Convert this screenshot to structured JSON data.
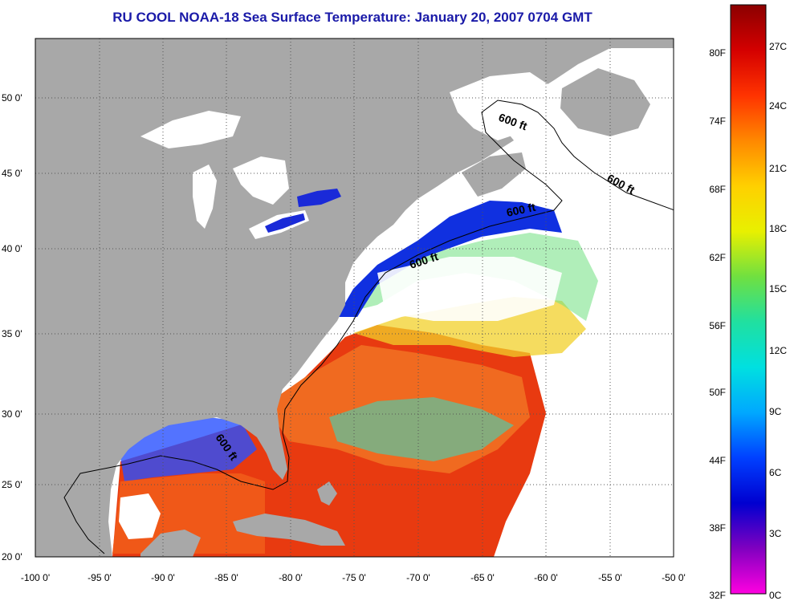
{
  "title": "RU COOL  NOAA-18  Sea Surface Temperature:  January 20, 2007 0704 GMT",
  "x_ticks": [
    "-100 0'",
    "-95 0'",
    "-90 0'",
    "-85 0'",
    "-80 0'",
    "-75 0'",
    "-70 0'",
    "-65 0'",
    "-60 0'",
    "-55 0'",
    "-50 0'"
  ],
  "y_ticks": [
    "50 0'",
    "45 0'",
    "40 0'",
    "35 0'",
    "30 0'",
    "25 0'",
    "20 0'"
  ],
  "contour_label": "600 ft",
  "colorbar": {
    "fahrenheit": [
      "80F",
      "74F",
      "68F",
      "62F",
      "56F",
      "50F",
      "44F",
      "38F",
      "32F"
    ],
    "celsius": [
      "27C",
      "24C",
      "21C",
      "18C",
      "15C",
      "12C",
      "9C",
      "6C",
      "3C",
      "0C"
    ],
    "colors": [
      "#8b0000",
      "#d40000",
      "#ff3300",
      "#ff8800",
      "#ffd000",
      "#e8f000",
      "#70e040",
      "#20e0a0",
      "#00e0e0",
      "#00a8ff",
      "#0040ff",
      "#0000d0",
      "#8000c0",
      "#ff00e0"
    ]
  },
  "colors": {
    "land": "#a8a8a8",
    "cloud": "#ffffff",
    "title": "#1a1aa8"
  }
}
